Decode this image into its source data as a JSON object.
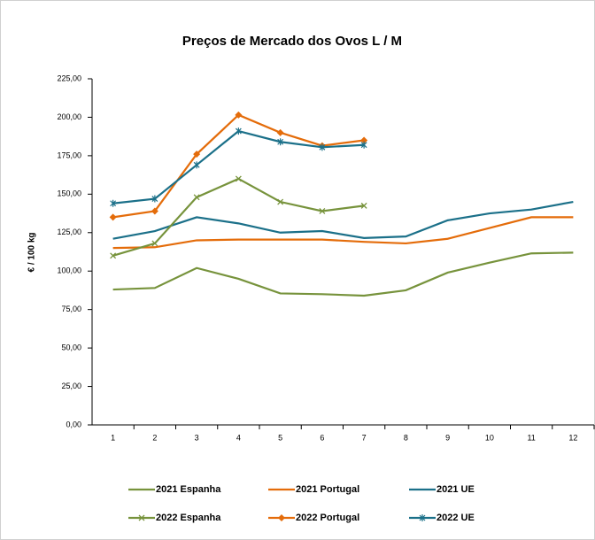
{
  "chart_data": {
    "type": "line",
    "title": "Preços de Mercado dos Ovos L / M",
    "y_label": "€ / 100 kg",
    "categories": [
      "1",
      "2",
      "3",
      "4",
      "5",
      "6",
      "7",
      "8",
      "9",
      "10",
      "11",
      "12"
    ],
    "ylim": [
      0,
      225
    ],
    "yticks": [
      {
        "value": 0,
        "label": "0,00"
      },
      {
        "value": 25,
        "label": "25,00"
      },
      {
        "value": 50,
        "label": "50,00"
      },
      {
        "value": 75,
        "label": "75,00"
      },
      {
        "value": 100,
        "label": "100,00"
      },
      {
        "value": 125,
        "label": "125,00"
      },
      {
        "value": 150,
        "label": "150,00"
      },
      {
        "value": 175,
        "label": "175,00"
      },
      {
        "value": 200,
        "label": "200,00"
      },
      {
        "value": 225,
        "label": "225,00"
      }
    ],
    "grid": false,
    "series": [
      {
        "name": "2021 Espanha",
        "color": "#77933c",
        "marker": "none",
        "values": [
          88,
          89,
          102,
          95,
          85.5,
          85,
          84,
          87.5,
          99,
          105.5,
          111.5,
          112
        ]
      },
      {
        "name": "2021 Portugal",
        "color": "#e46c0a",
        "marker": "none",
        "values": [
          115,
          115.5,
          120,
          120.5,
          120.5,
          120.5,
          119,
          118,
          121,
          128,
          135,
          135
        ]
      },
      {
        "name": "2021 UE",
        "color": "#1b7089",
        "marker": "none",
        "values": [
          121,
          126,
          135,
          131,
          125,
          126,
          121.5,
          122.5,
          133,
          137.5,
          140,
          145
        ]
      },
      {
        "name": "2022 Espanha",
        "color": "#77933c",
        "marker": "x",
        "values": [
          110,
          118,
          148,
          160,
          145,
          139,
          142.5,
          null,
          null,
          null,
          null,
          null
        ]
      },
      {
        "name": "2022 Portugal",
        "color": "#e46c0a",
        "marker": "diamond",
        "values": [
          135,
          139,
          176,
          201.5,
          190,
          181.5,
          185,
          null,
          null,
          null,
          null,
          null
        ]
      },
      {
        "name": "2022 UE",
        "color": "#1b7089",
        "marker": "star",
        "values": [
          144,
          147,
          169,
          191,
          184,
          180.5,
          182,
          null,
          null,
          null,
          null,
          null
        ]
      }
    ]
  }
}
